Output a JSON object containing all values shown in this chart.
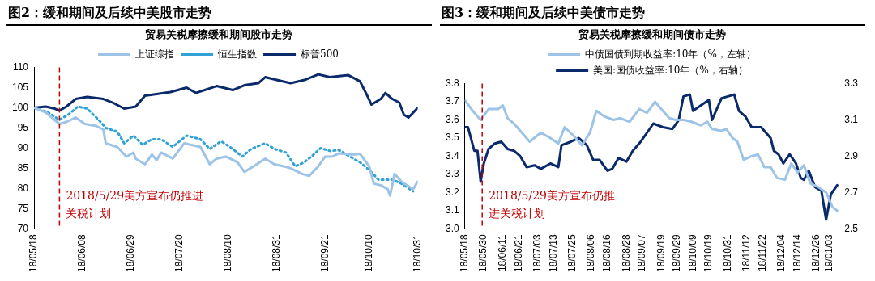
{
  "chart_data": [
    {
      "type": "line",
      "title": "图2：缓和期间及后续中美股市走势",
      "subtitle": "贸易关税摩擦缓和期间股市走势",
      "legend": "top",
      "xlim": [
        "2018-05-18",
        "2018-10-31"
      ],
      "xticks": [
        {
          "value": "2018-05-18",
          "label": "18/05/18"
        },
        {
          "value": "2018-06-08",
          "label": "18/06/08"
        },
        {
          "value": "2018-06-29",
          "label": "18/06/29"
        },
        {
          "value": "2018-07-20",
          "label": "18/07/20"
        },
        {
          "value": "2018-08-10",
          "label": "18/08/10"
        },
        {
          "value": "2018-08-31",
          "label": "18/08/31"
        },
        {
          "value": "2018-09-21",
          "label": "18/09/21"
        },
        {
          "value": "2018-10-10",
          "label": "18/10/10"
        },
        {
          "value": "2018-10-31",
          "label": "18/10/31"
        }
      ],
      "ylim": [
        70,
        110
      ],
      "yticks": [
        70,
        75,
        80,
        85,
        90,
        95,
        100,
        105,
        110
      ],
      "ref_lines": [
        {
          "axis": "x",
          "value": "2018-05-29",
          "label": "2018/5/29美方宣布仍推进关税计划",
          "color": "#c00000",
          "line_style": "dashed"
        }
      ],
      "series": [
        {
          "name": "上证综指",
          "color": "#9dc3e6",
          "line_style": "solid",
          "x": [
            "2018-05-18",
            "2018-05-23",
            "2018-05-29",
            "2018-06-01",
            "2018-06-05",
            "2018-06-09",
            "2018-06-14",
            "2018-06-17",
            "2018-06-18",
            "2018-06-23",
            "2018-06-27",
            "2018-06-30",
            "2018-07-01",
            "2018-07-05",
            "2018-07-08",
            "2018-07-10",
            "2018-07-12",
            "2018-07-17",
            "2018-07-22",
            "2018-07-29",
            "2018-08-02",
            "2018-08-05",
            "2018-08-09",
            "2018-08-14",
            "2018-08-17",
            "2018-08-21",
            "2018-08-26",
            "2018-08-30",
            "2018-09-03",
            "2018-09-06",
            "2018-09-11",
            "2018-09-14",
            "2018-09-18",
            "2018-09-21",
            "2018-09-24",
            "2018-09-27",
            "2018-10-03",
            "2018-10-06",
            "2018-10-10",
            "2018-10-12",
            "2018-10-15",
            "2018-10-18",
            "2018-10-19",
            "2018-10-21",
            "2018-10-24",
            "2018-10-29",
            "2018-10-31"
          ],
          "values": [
            100,
            98.9,
            96,
            96.5,
            97.6,
            96,
            95.5,
            94.6,
            91.2,
            90.3,
            87.9,
            88.9,
            87.4,
            86,
            88.4,
            87,
            88.9,
            87.4,
            91.2,
            90.3,
            86,
            87.4,
            87.9,
            86.5,
            84.1,
            85.5,
            87.4,
            86,
            85.5,
            85,
            83.6,
            83.1,
            85.5,
            87.9,
            87.9,
            88.7,
            88.4,
            88.6,
            85.5,
            81.2,
            80.8,
            79.8,
            78.2,
            83.6,
            81.7,
            79.8,
            81.7
          ]
        },
        {
          "name": "恒生指数",
          "color": "#31a2d6",
          "line_style": "dotted",
          "x": [
            "2018-05-18",
            "2018-05-24",
            "2018-05-29",
            "2018-06-02",
            "2018-06-06",
            "2018-06-10",
            "2018-06-15",
            "2018-06-18",
            "2018-06-23",
            "2018-06-26",
            "2018-06-30",
            "2018-07-04",
            "2018-07-08",
            "2018-07-12",
            "2018-07-17",
            "2018-07-23",
            "2018-07-29",
            "2018-08-02",
            "2018-08-07",
            "2018-08-12",
            "2018-08-16",
            "2018-08-20",
            "2018-08-26",
            "2018-08-30",
            "2018-09-04",
            "2018-09-08",
            "2018-09-12",
            "2018-09-15",
            "2018-09-19",
            "2018-09-23",
            "2018-09-27",
            "2018-10-01",
            "2018-10-06",
            "2018-10-10",
            "2018-10-14",
            "2018-10-20",
            "2018-10-24",
            "2018-10-29"
          ],
          "values": [
            100,
            98.9,
            97,
            98.4,
            100.3,
            99.8,
            97,
            95,
            94.1,
            91.2,
            93.1,
            90.8,
            92.2,
            92.2,
            90.3,
            93.1,
            92.2,
            89.8,
            91.7,
            89.8,
            87.9,
            89.8,
            91.2,
            89.8,
            88.9,
            85.5,
            86.5,
            87.9,
            90,
            89.3,
            89.5,
            88.1,
            86.5,
            84.6,
            82.2,
            82.2,
            81.2,
            79.3
          ]
        },
        {
          "name": "标普500",
          "color": "#0b2a6b",
          "line_style": "solid",
          "x": [
            "2018-05-18",
            "2018-05-23",
            "2018-05-27",
            "2018-05-29",
            "2018-06-01",
            "2018-06-05",
            "2018-06-10",
            "2018-06-17",
            "2018-06-21",
            "2018-06-26",
            "2018-07-01",
            "2018-07-05",
            "2018-07-10",
            "2018-07-16",
            "2018-07-23",
            "2018-07-27",
            "2018-08-05",
            "2018-08-12",
            "2018-08-17",
            "2018-08-23",
            "2018-08-26",
            "2018-08-31",
            "2018-09-06",
            "2018-09-12",
            "2018-09-18",
            "2018-09-23",
            "2018-10-01",
            "2018-10-06",
            "2018-10-09",
            "2018-10-11",
            "2018-10-15",
            "2018-10-17",
            "2018-10-20",
            "2018-10-23",
            "2018-10-25",
            "2018-10-27",
            "2018-10-31"
          ],
          "values": [
            100,
            100.3,
            99.8,
            99.3,
            100.3,
            102.2,
            102.7,
            102.2,
            101.3,
            99.8,
            100.3,
            103,
            103.4,
            103.9,
            105,
            103.7,
            105.4,
            104.4,
            105.6,
            106.1,
            107.6,
            106.9,
            106.1,
            106.9,
            108.3,
            107.6,
            108.1,
            106.6,
            103.2,
            100.8,
            102.2,
            103.7,
            102.2,
            101.3,
            98.3,
            97.6,
            100
          ]
        }
      ]
    },
    {
      "type": "line",
      "title": "图3：缓和期间及后续中美债市走势",
      "subtitle": "贸易关税摩擦缓和期间债市走势",
      "legend": "top",
      "xlim": [
        "2018-05-18",
        "2019-01-09"
      ],
      "xticks": [
        {
          "value": "2018-05-18",
          "label": "18/05/18"
        },
        {
          "value": "2018-05-30",
          "label": "18/05/30"
        },
        {
          "value": "2018-06-11",
          "label": "18/06/11"
        },
        {
          "value": "2018-06-21",
          "label": "18/06/21"
        },
        {
          "value": "2018-07-03",
          "label": "18/07/03"
        },
        {
          "value": "2018-07-13",
          "label": "18/07/13"
        },
        {
          "value": "2018-07-25",
          "label": "18/07/25"
        },
        {
          "value": "2018-08-06",
          "label": "18/08/06"
        },
        {
          "value": "2018-08-16",
          "label": "18/08/16"
        },
        {
          "value": "2018-08-28",
          "label": "18/08/28"
        },
        {
          "value": "2018-09-07",
          "label": "18/09/07"
        },
        {
          "value": "2018-09-19",
          "label": "18/09/19"
        },
        {
          "value": "2018-09-29",
          "label": "18/09/29"
        },
        {
          "value": "2018-10-09",
          "label": "18/10/09"
        },
        {
          "value": "2018-10-19",
          "label": "18/10/19"
        },
        {
          "value": "2018-10-31",
          "label": "18/10/31"
        },
        {
          "value": "2018-11-12",
          "label": "18/11/12"
        },
        {
          "value": "2018-11-22",
          "label": "18/11/22"
        },
        {
          "value": "2018-12-04",
          "label": "18/12/04"
        },
        {
          "value": "2018-12-14",
          "label": "18/12/14"
        },
        {
          "value": "2018-12-26",
          "label": "18/12/26"
        },
        {
          "value": "2019-01-03",
          "label": "19/01/03"
        }
      ],
      "ylim": [
        3.0,
        3.8
      ],
      "yticks": [
        {
          "value": 3,
          "label": "3.0"
        },
        3.1,
        3.2,
        3.3,
        3.4,
        3.5,
        3.6,
        3.7,
        3.8
      ],
      "y2lim": [
        2.5,
        3.3
      ],
      "y2ticks": [
        2.5,
        2.7,
        2.9,
        3.1,
        3.3
      ],
      "ref_lines": [
        {
          "axis": "x",
          "value": "2018-05-29",
          "label": "2018/5/29美方宣布仍推进关税计划",
          "color": "#c00000",
          "line_style": "dashed"
        }
      ],
      "series": [
        {
          "name": "中债国债到期收益率:10年（%，左轴）",
          "color": "#9dc3e6",
          "axis": "y",
          "x": [
            "2018-05-18",
            "2018-05-23",
            "2018-05-28",
            "2018-06-02",
            "2018-06-08",
            "2018-06-11",
            "2018-06-14",
            "2018-06-18",
            "2018-06-23",
            "2018-06-28",
            "2018-07-05",
            "2018-07-11",
            "2018-07-16",
            "2018-07-20",
            "2018-07-26",
            "2018-07-31",
            "2018-08-05",
            "2018-08-09",
            "2018-08-14",
            "2018-08-20",
            "2018-08-24",
            "2018-08-30",
            "2018-09-05",
            "2018-09-10",
            "2018-09-15",
            "2018-09-19",
            "2018-09-24",
            "2018-09-28",
            "2018-10-03",
            "2018-10-08",
            "2018-10-14",
            "2018-10-18",
            "2018-10-21",
            "2018-10-27",
            "2018-10-30",
            "2018-11-03",
            "2018-11-06",
            "2018-11-10",
            "2018-11-15",
            "2018-11-19",
            "2018-11-23",
            "2018-11-27",
            "2018-12-01",
            "2018-12-06",
            "2018-12-10",
            "2018-12-14",
            "2018-12-18",
            "2018-12-22",
            "2018-12-27",
            "2019-01-01",
            "2019-01-05",
            "2019-01-08"
          ],
          "values": [
            3.71,
            3.65,
            3.6,
            3.66,
            3.66,
            3.68,
            3.61,
            3.58,
            3.53,
            3.48,
            3.53,
            3.5,
            3.47,
            3.56,
            3.51,
            3.46,
            3.53,
            3.65,
            3.62,
            3.6,
            3.61,
            3.59,
            3.66,
            3.64,
            3.7,
            3.66,
            3.61,
            3.6,
            3.6,
            3.59,
            3.57,
            3.59,
            3.55,
            3.54,
            3.55,
            3.5,
            3.48,
            3.38,
            3.4,
            3.41,
            3.34,
            3.34,
            3.28,
            3.27,
            3.36,
            3.31,
            3.35,
            3.25,
            3.23,
            3.2,
            3.12,
            3.1
          ]
        },
        {
          "name": "美国:国债收益率:10年（%，右轴）",
          "color": "#0b2a6b",
          "axis": "y2",
          "x": [
            "2018-05-18",
            "2018-05-20",
            "2018-05-24",
            "2018-05-26",
            "2018-05-28",
            "2018-05-30",
            "2018-06-02",
            "2018-06-06",
            "2018-06-10",
            "2018-06-14",
            "2018-06-18",
            "2018-06-22",
            "2018-06-26",
            "2018-07-01",
            "2018-07-05",
            "2018-07-11",
            "2018-07-16",
            "2018-07-18",
            "2018-07-24",
            "2018-07-29",
            "2018-08-03",
            "2018-08-07",
            "2018-08-11",
            "2018-08-16",
            "2018-08-19",
            "2018-08-23",
            "2018-08-28",
            "2018-09-01",
            "2018-09-06",
            "2018-09-10",
            "2018-09-14",
            "2018-09-20",
            "2018-09-26",
            "2018-09-30",
            "2018-10-03",
            "2018-10-07",
            "2018-10-09",
            "2018-10-14",
            "2018-10-19",
            "2018-10-21",
            "2018-10-24",
            "2018-10-27",
            "2018-10-31",
            "2018-11-04",
            "2018-11-07",
            "2018-11-11",
            "2018-11-15",
            "2018-11-21",
            "2018-11-25",
            "2018-11-27",
            "2018-11-29",
            "2018-12-02",
            "2018-12-05",
            "2018-12-09",
            "2018-12-13",
            "2018-12-16",
            "2018-12-18",
            "2018-12-21",
            "2018-12-25",
            "2018-12-29",
            "2019-01-01",
            "2019-01-04",
            "2019-01-08"
          ],
          "values": [
            3.06,
            3.06,
            2.93,
            2.93,
            2.76,
            2.86,
            2.94,
            2.97,
            2.98,
            2.94,
            2.93,
            2.9,
            2.84,
            2.85,
            2.83,
            2.86,
            2.84,
            2.96,
            2.98,
            3.0,
            2.96,
            2.88,
            2.88,
            2.82,
            2.83,
            2.89,
            2.87,
            2.93,
            2.98,
            3.03,
            3.08,
            3.06,
            3.05,
            3.1,
            3.23,
            3.24,
            3.15,
            3.18,
            3.21,
            3.1,
            3.16,
            3.22,
            3.23,
            3.24,
            3.15,
            3.12,
            3.06,
            3.06,
            3.02,
            3.0,
            2.93,
            2.91,
            2.86,
            2.91,
            2.86,
            2.78,
            2.77,
            2.82,
            2.73,
            2.71,
            2.55,
            2.69,
            2.74
          ]
        }
      ]
    }
  ]
}
